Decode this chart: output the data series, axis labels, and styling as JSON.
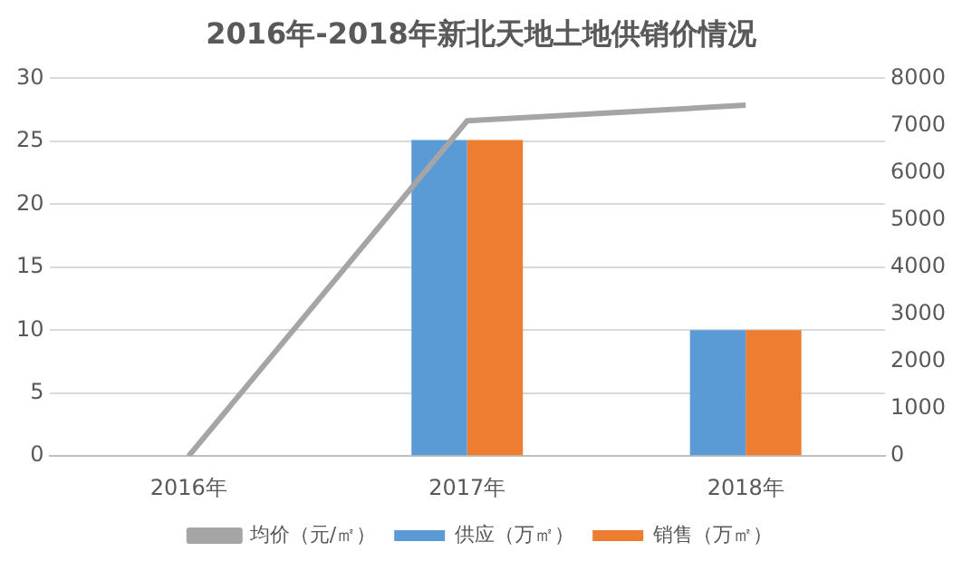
{
  "chart_data": {
    "type": "bar",
    "title": "2016年-2018年新北天地土地供销价情况",
    "categories": [
      "2016年",
      "2017年",
      "2018年"
    ],
    "series": [
      {
        "name": "供应（万㎡）",
        "color": "#5b9bd5",
        "values": [
          0,
          25.1,
          10
        ]
      },
      {
        "name": "销售（万㎡）",
        "color": "#ed7d31",
        "values": [
          0,
          25.1,
          10
        ]
      },
      {
        "name": "均价（元/㎡）",
        "color": "#a5a5a5",
        "type": "line",
        "axis": "y2",
        "values": [
          0,
          7100,
          7430
        ]
      }
    ],
    "ylim": [
      0,
      30
    ],
    "yticks": [
      0,
      5,
      10,
      15,
      20,
      25,
      30
    ],
    "y2lim": [
      0,
      8000
    ],
    "y2ticks": [
      0,
      1000,
      2000,
      3000,
      4000,
      5000,
      6000,
      7000,
      8000
    ],
    "grid": "y",
    "legend": "bottom",
    "marker": "none"
  }
}
